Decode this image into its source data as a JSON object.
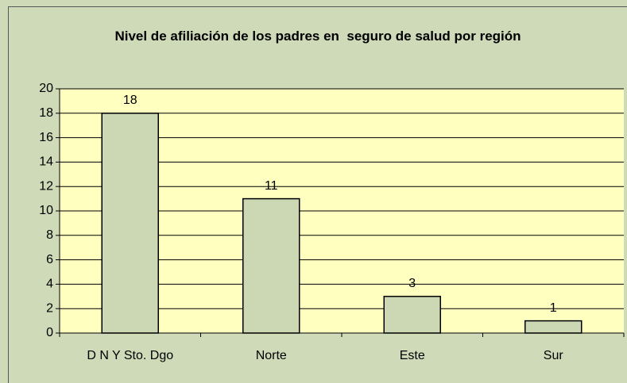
{
  "chart_data": {
    "type": "bar",
    "title": "Nivel de afiliación de los padres en  seguro de salud por región",
    "categories": [
      "D N Y Sto. Dgo",
      "Norte",
      "Este",
      "Sur"
    ],
    "values": [
      18,
      11,
      3,
      1
    ],
    "color": "#ccd8b4",
    "ylim": [
      0,
      20
    ],
    "yticks": [
      0,
      2,
      4,
      6,
      8,
      10,
      12,
      14,
      16,
      18,
      20
    ],
    "grid": true
  }
}
